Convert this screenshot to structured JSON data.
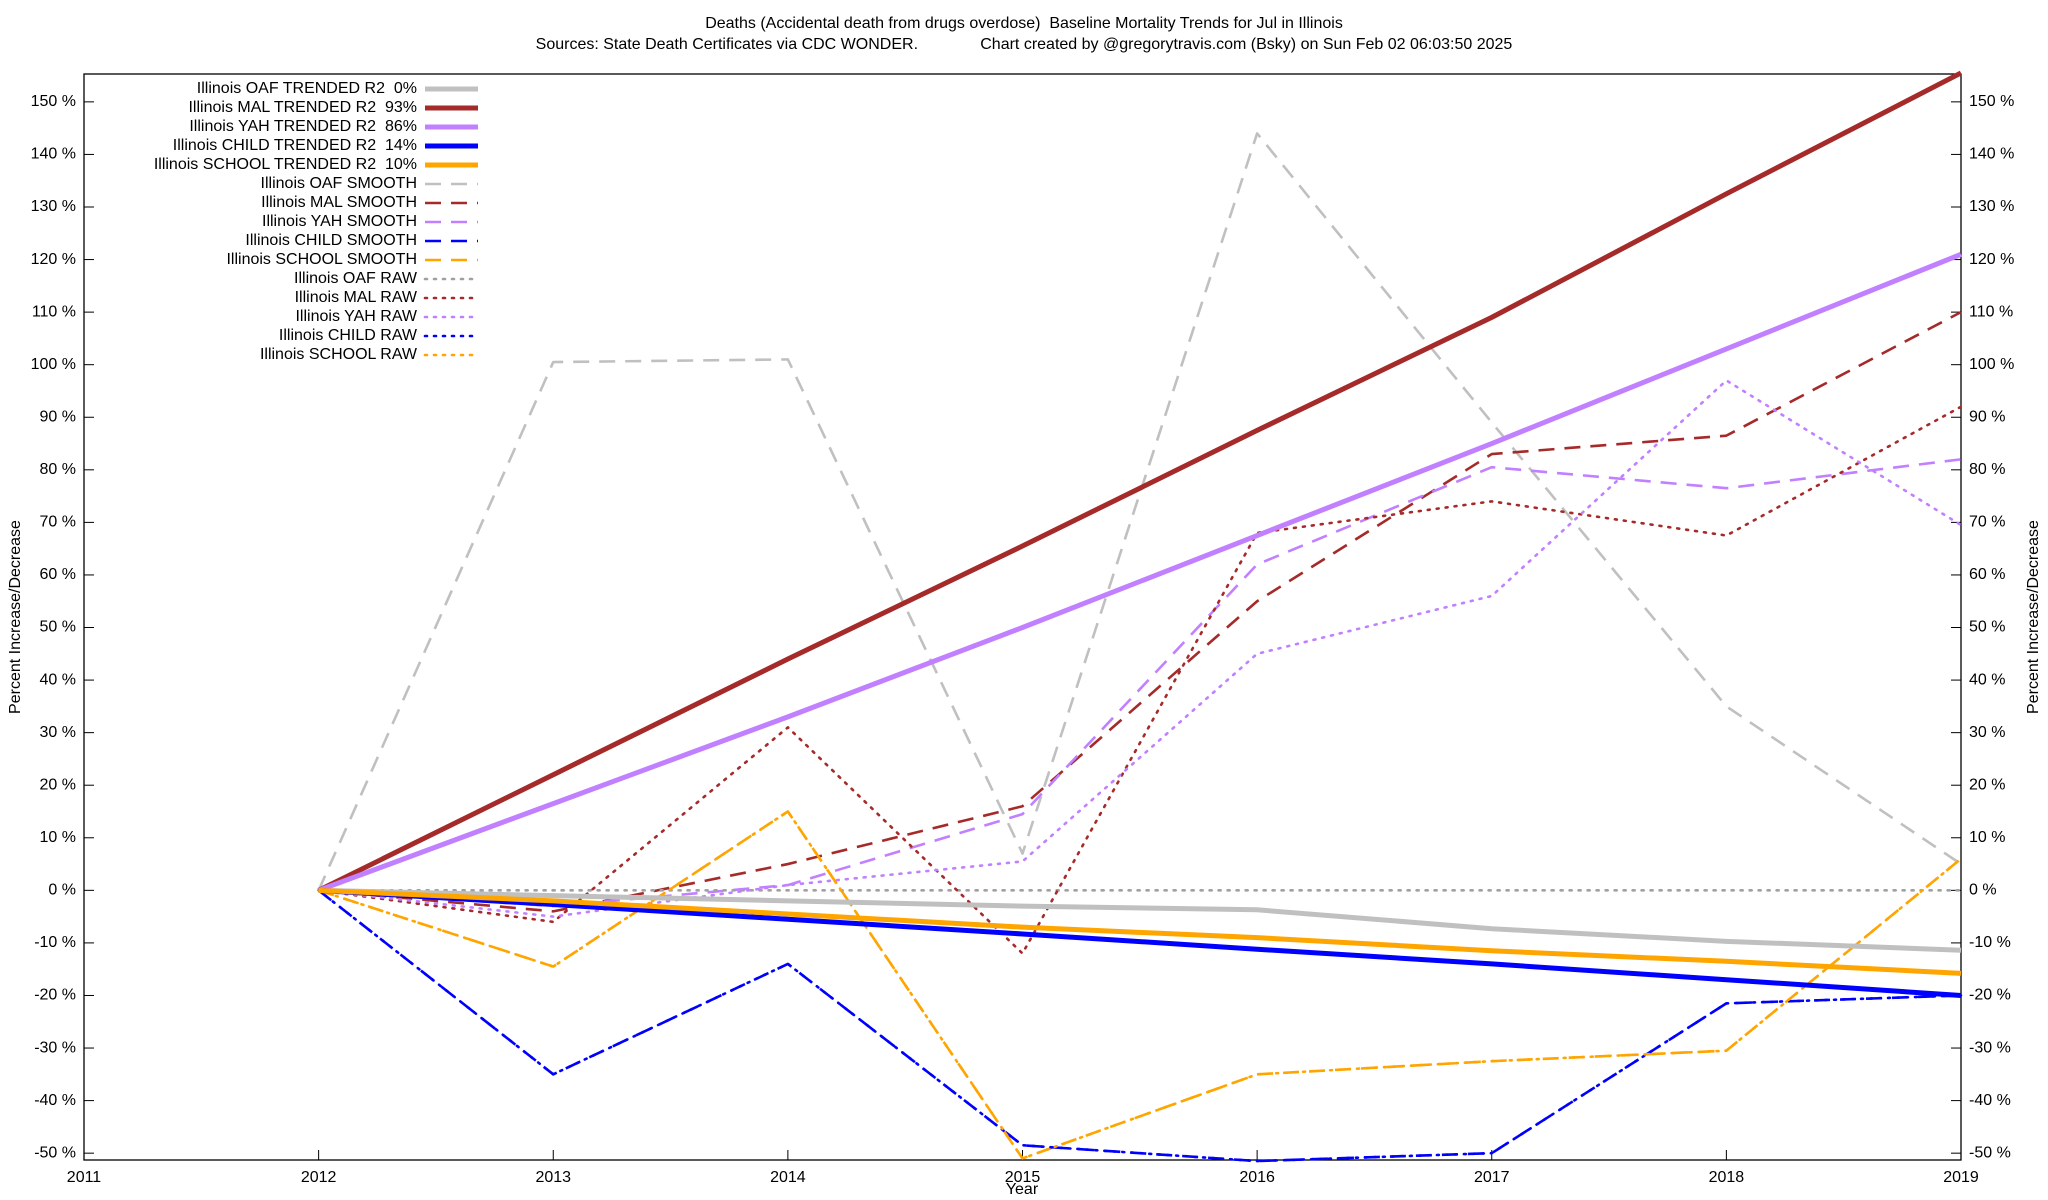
{
  "chart_data": {
    "type": "line",
    "title": "Deaths (Accidental death from drugs overdose)  Baseline Mortality Trends for Jul in Illinois",
    "subtitle": "Sources: State Death Certificates via CDC WONDER.              Chart created by @gregorytravis.com (Bsky) on Sun Feb 02 06:03:50 2025",
    "xlabel": "Year",
    "ylabel": "Percent Increase/Decrease",
    "xlim": [
      2011,
      2019
    ],
    "xticks": [
      2011,
      2012,
      2013,
      2014,
      2015,
      2016,
      2017,
      2018,
      2019
    ],
    "ylim": [
      -51.3,
      155.3
    ],
    "yticks": [
      {
        "value": -50,
        "label": "-50 %"
      },
      {
        "value": -40,
        "label": "-40 %"
      },
      {
        "value": -30,
        "label": "-30 %"
      },
      {
        "value": -20,
        "label": "-20 %"
      },
      {
        "value": -10,
        "label": "-10 %"
      },
      {
        "value": 0,
        "label": "0 %"
      },
      {
        "value": 10,
        "label": "10 %"
      },
      {
        "value": 20,
        "label": "20 %"
      },
      {
        "value": 30,
        "label": "30 %"
      },
      {
        "value": 40,
        "label": "40 %"
      },
      {
        "value": 50,
        "label": "50 %"
      },
      {
        "value": 60,
        "label": "60 %"
      },
      {
        "value": 70,
        "label": "70 %"
      },
      {
        "value": 80,
        "label": "80 %"
      },
      {
        "value": 90,
        "label": "90 %"
      },
      {
        "value": 100,
        "label": "100 %"
      },
      {
        "value": 110,
        "label": "110 %"
      },
      {
        "value": 120,
        "label": "120 %"
      },
      {
        "value": 130,
        "label": "130 %"
      },
      {
        "value": 140,
        "label": "140 %"
      },
      {
        "value": 150,
        "label": "150 %"
      }
    ],
    "legend": "upper left",
    "grid": false,
    "x": [
      2012,
      2013,
      2014,
      2015,
      2016,
      2017,
      2018,
      2019
    ],
    "series": [
      {
        "name": "Illinois OAF TRENDED R2  0%",
        "color": "#c0c0c0",
        "style": "solid",
        "values": [
          0,
          -1,
          -2,
          -3,
          -3.7,
          -7.3,
          -9.7,
          -11.4
        ]
      },
      {
        "name": "Illinois MAL TRENDED R2  93%",
        "color": "#a52a2a",
        "style": "solid",
        "values": [
          0,
          22,
          44,
          65.5,
          87.5,
          109,
          132.5,
          155.5
        ]
      },
      {
        "name": "Illinois YAH TRENDED R2  86%",
        "color": "#c080ff",
        "style": "solid",
        "values": [
          0,
          16.5,
          33,
          50,
          67.5,
          85,
          103,
          121
        ]
      },
      {
        "name": "Illinois CHILD TRENDED R2  14%",
        "color": "#0000ff",
        "style": "solid",
        "values": [
          0,
          -2.7,
          -5.5,
          -8.3,
          -11.2,
          -14,
          -17,
          -20
        ]
      },
      {
        "name": "Illinois SCHOOL TRENDED R2  10%",
        "color": "#ffa500",
        "style": "solid",
        "values": [
          0,
          -2,
          -4.5,
          -7,
          -9,
          -11.5,
          -13.5,
          -15.8
        ]
      },
      {
        "name": "Illinois OAF SMOOTH",
        "color": "#c0c0c0",
        "style": "dashed",
        "values": [
          0,
          100.5,
          101,
          7,
          144,
          89,
          35,
          5
        ]
      },
      {
        "name": "Illinois MAL SMOOTH",
        "color": "#a52a2a",
        "style": "dashed",
        "values": [
          0,
          -4,
          5,
          16,
          55,
          83,
          86.5,
          110
        ]
      },
      {
        "name": "Illinois YAH SMOOTH",
        "color": "#c080ff",
        "style": "dashed",
        "values": [
          0,
          -3,
          1,
          14.5,
          62,
          80.5,
          76.5,
          82
        ]
      },
      {
        "name": "Illinois CHILD SMOOTH",
        "color": "#0000ff",
        "style": "dashed",
        "values": [
          0,
          -35,
          -14,
          -48.5,
          -51.5,
          -50,
          -21.5,
          -20
        ]
      },
      {
        "name": "Illinois SCHOOL SMOOTH",
        "color": "#ffa500",
        "style": "dashed",
        "values": [
          0,
          -14.5,
          15,
          -51,
          -35,
          -32.5,
          -30.5,
          6
        ]
      },
      {
        "name": "Illinois OAF RAW",
        "color": "#a0a0a0",
        "style": "dotted",
        "values": [
          0,
          0,
          0,
          0,
          0,
          0,
          0,
          0
        ]
      },
      {
        "name": "Illinois MAL RAW",
        "color": "#a52a2a",
        "style": "dotted",
        "values": [
          0,
          -6,
          31,
          -12,
          68,
          74,
          67.5,
          92
        ]
      },
      {
        "name": "Illinois YAH RAW",
        "color": "#c080ff",
        "style": "dotted",
        "values": [
          0,
          -5,
          1,
          5.5,
          45,
          56,
          97,
          69.5
        ]
      },
      {
        "name": "Illinois CHILD RAW",
        "color": "#0000ff",
        "style": "dotted",
        "values": [
          0,
          -35,
          -14,
          -48.5,
          -51.5,
          -50,
          -21.5,
          -20
        ]
      },
      {
        "name": "Illinois SCHOOL RAW",
        "color": "#ffa500",
        "style": "dotted",
        "values": [
          0,
          -14.5,
          15,
          -51,
          -35,
          -32.5,
          -30.5,
          6
        ]
      }
    ]
  }
}
